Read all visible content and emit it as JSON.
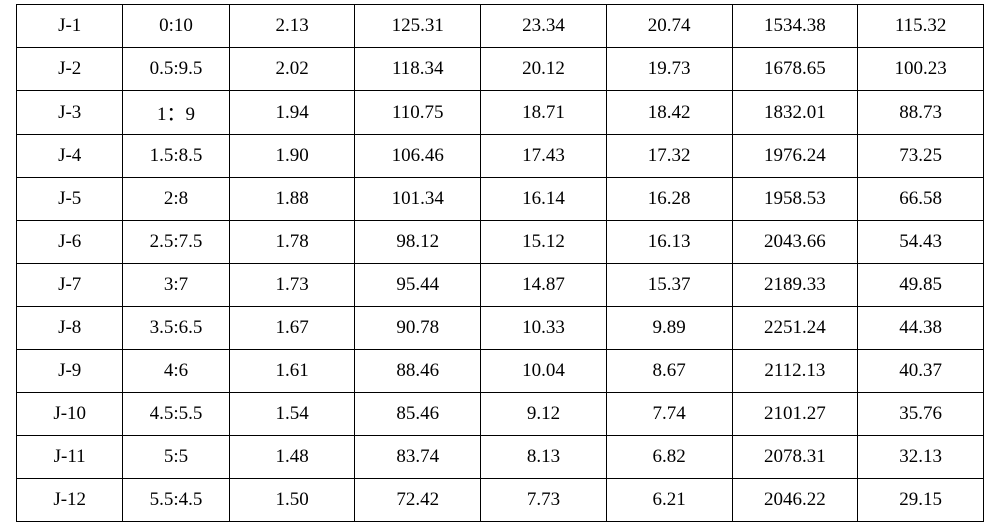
{
  "table": {
    "columns": 8,
    "rows": [
      [
        "J-1",
        "0:10",
        "2.13",
        "125.31",
        "23.34",
        "20.74",
        "1534.38",
        "115.32"
      ],
      [
        "J-2",
        "0.5:9.5",
        "2.02",
        "118.34",
        "20.12",
        "19.73",
        "1678.65",
        "100.23"
      ],
      [
        "J-3",
        "1：9",
        "1.94",
        "110.75",
        "18.71",
        "18.42",
        "1832.01",
        "88.73"
      ],
      [
        "J-4",
        "1.5:8.5",
        "1.90",
        "106.46",
        "17.43",
        "17.32",
        "1976.24",
        "73.25"
      ],
      [
        "J-5",
        "2:8",
        "1.88",
        "101.34",
        "16.14",
        "16.28",
        "1958.53",
        "66.58"
      ],
      [
        "J-6",
        "2.5:7.5",
        "1.78",
        "98.12",
        "15.12",
        "16.13",
        "2043.66",
        "54.43"
      ],
      [
        "J-7",
        "3:7",
        "1.73",
        "95.44",
        "14.87",
        "15.37",
        "2189.33",
        "49.85"
      ],
      [
        "J-8",
        "3.5:6.5",
        "1.67",
        "90.78",
        "10.33",
        "9.89",
        "2251.24",
        "44.38"
      ],
      [
        "J-9",
        "4:6",
        "1.61",
        "88.46",
        "10.04",
        "8.67",
        "2112.13",
        "40.37"
      ],
      [
        "J-10",
        "4.5:5.5",
        "1.54",
        "85.46",
        "9.12",
        "7.74",
        "2101.27",
        "35.76"
      ],
      [
        "J-11",
        "5:5",
        "1.48",
        "83.74",
        "8.13",
        "6.82",
        "2078.31",
        "32.13"
      ],
      [
        "J-12",
        "5.5:4.5",
        "1.50",
        "72.42",
        "7.73",
        "6.21",
        "2046.22",
        "29.15"
      ]
    ],
    "border_color": "#000000",
    "background_color": "#ffffff",
    "text_color": "#000000",
    "font_size": 19,
    "font_family": "Times New Roman, serif",
    "cell_alignment": "center"
  }
}
